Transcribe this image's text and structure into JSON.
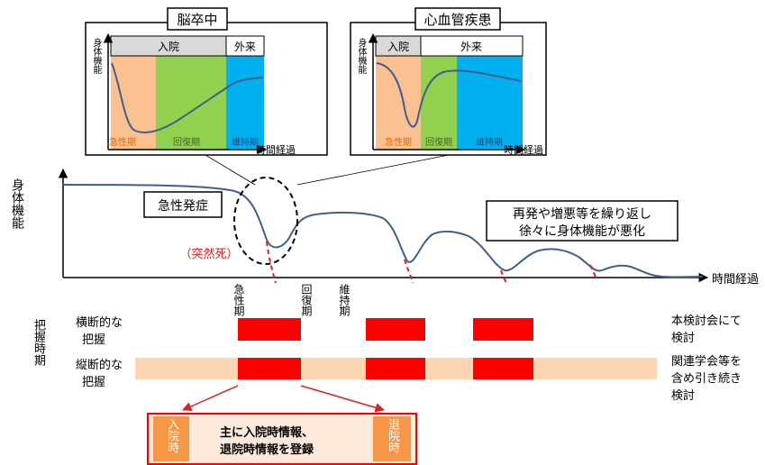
{
  "inset_left": {
    "title": "脳卒中",
    "y_label": "身体機能",
    "x_label": "時間経過",
    "phase_header_1": "入院",
    "phase_header_2": "外来",
    "phase_1": "急性期",
    "phase_2": "回復期",
    "phase_3": "維持期",
    "colors": {
      "acute": "#fac090",
      "recovery": "#92d050",
      "maintenance": "#00b0f0",
      "header": "#d9d9d9",
      "curve": "#3f5f8f"
    }
  },
  "inset_right": {
    "title": "心血管疾患",
    "y_label": "身体機能",
    "x_label": "時間経過",
    "phase_header_1": "入院",
    "phase_header_2": "外来",
    "phase_1": "急性期",
    "phase_2": "回復期",
    "phase_3": "維持期"
  },
  "main_chart": {
    "y_label": "身体機能",
    "x_label": "時間経過",
    "callout_onset": "急性発症",
    "sudden_death": "（突然死）",
    "callout_relapse_line1": "再発や増悪等を繰り返し",
    "callout_relapse_line2": "徐々に身体機能が悪化",
    "phase_acute": "急性期",
    "phase_recovery": "回復期",
    "phase_maintenance": "維持期",
    "curve_color": "#3f5f8f",
    "dash_color": "#e02020"
  },
  "grasp": {
    "section_label": "把握時期",
    "row1_label_line1": "横断的な",
    "row1_label_line2": "把握",
    "row2_label_line1": "縦断的な",
    "row2_label_line2": "把握",
    "row1_note_line1": "本検討会にて",
    "row1_note_line2": "検討",
    "row2_note_line1": "関連学会等を",
    "row2_note_line2": "含め引き続き",
    "row2_note_line3": "検討",
    "band_color": "#fcd5b5",
    "block_color": "#ff0000"
  },
  "bottom_box": {
    "left_tag": "入院時",
    "right_tag": "退院時",
    "text_line1": "主に入院時情報、",
    "text_line2": "退院時情報を登録",
    "tag_color": "#f79646",
    "box_fill": "#fde9d9",
    "border_color": "#ff0000"
  }
}
